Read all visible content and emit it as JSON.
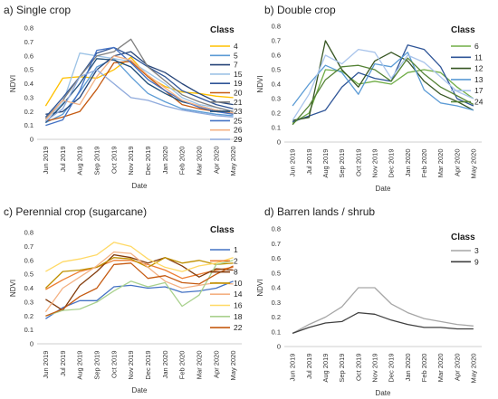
{
  "chart_data": [
    {
      "type": "line",
      "title": "a) Single crop",
      "xlabel": "Date",
      "ylabel": "NDVI",
      "ylim": [
        0,
        0.8
      ],
      "yticks": [
        0,
        0.1,
        0.2,
        0.3,
        0.4,
        0.5,
        0.6,
        0.7,
        0.8
      ],
      "grid": false,
      "legend_title": "Class",
      "legend_position": "right",
      "categories": [
        "Jun 2019",
        "Jul 2019",
        "Aug 2019",
        "Sep 2019",
        "Oct 2019",
        "Nov 2019",
        "Dec 2019",
        "Jan 2020",
        "Feb 2020",
        "Mar 2020",
        "Apr 2020",
        "May 2020"
      ],
      "series": [
        {
          "name": "4",
          "color": "#ffc000",
          "values": [
            0.24,
            0.44,
            0.45,
            0.44,
            0.5,
            0.59,
            0.45,
            0.38,
            0.34,
            0.33,
            0.31,
            0.3
          ]
        },
        {
          "name": "5",
          "color": "#5b9bd5",
          "values": [
            0.12,
            0.18,
            0.34,
            0.52,
            0.58,
            0.45,
            0.33,
            0.27,
            0.22,
            0.2,
            0.18,
            0.17
          ]
        },
        {
          "name": "7",
          "color": "#264478",
          "values": [
            0.18,
            0.2,
            0.3,
            0.5,
            0.6,
            0.63,
            0.53,
            0.48,
            0.4,
            0.33,
            0.27,
            0.25
          ]
        },
        {
          "name": "15",
          "color": "#9dc3e6",
          "values": [
            0.14,
            0.26,
            0.62,
            0.6,
            0.58,
            0.56,
            0.48,
            0.4,
            0.3,
            0.25,
            0.23,
            0.2
          ]
        },
        {
          "name": "19",
          "color": "#2f5597",
          "values": [
            0.16,
            0.3,
            0.45,
            0.62,
            0.66,
            0.6,
            0.52,
            0.45,
            0.35,
            0.3,
            0.25,
            0.22
          ]
        },
        {
          "name": "20",
          "color": "#c55a11",
          "values": [
            0.13,
            0.16,
            0.2,
            0.36,
            0.55,
            0.56,
            0.45,
            0.35,
            0.25,
            0.22,
            0.2,
            0.19
          ]
        },
        {
          "name": "21",
          "color": "#7f7f7f",
          "values": [
            0.15,
            0.28,
            0.45,
            0.6,
            0.63,
            0.72,
            0.52,
            0.42,
            0.32,
            0.27,
            0.23,
            0.2
          ]
        },
        {
          "name": "23",
          "color": "#1f4e79",
          "values": [
            0.12,
            0.25,
            0.4,
            0.58,
            0.57,
            0.52,
            0.4,
            0.33,
            0.27,
            0.24,
            0.21,
            0.19
          ]
        },
        {
          "name": "25",
          "color": "#4472c4",
          "values": [
            0.1,
            0.14,
            0.35,
            0.64,
            0.66,
            0.55,
            0.43,
            0.35,
            0.28,
            0.23,
            0.2,
            0.18
          ]
        },
        {
          "name": "26",
          "color": "#f4b183",
          "values": [
            0.14,
            0.28,
            0.25,
            0.45,
            0.6,
            0.57,
            0.46,
            0.37,
            0.28,
            0.24,
            0.21,
            0.19
          ]
        },
        {
          "name": "29",
          "color": "#8faadc",
          "values": [
            0.13,
            0.22,
            0.45,
            0.5,
            0.4,
            0.3,
            0.28,
            0.24,
            0.21,
            0.19,
            0.17,
            0.16
          ]
        }
      ]
    },
    {
      "type": "line",
      "title": "b) Double crop",
      "xlabel": "Date",
      "ylabel": "NDVI",
      "ylim": [
        0,
        0.8
      ],
      "yticks": [
        0,
        0.1,
        0.2,
        0.3,
        0.4,
        0.5,
        0.6,
        0.7,
        0.8
      ],
      "grid": false,
      "legend_title": "Class",
      "legend_position": "right",
      "categories": [
        "Jun 2019",
        "Jul 2019",
        "Aug 2019",
        "Sep 2019",
        "Oct 2019",
        "Nov 2019",
        "Dec 2019",
        "Jan 2020",
        "Feb 2020",
        "Mar 2020",
        "Apr 2020",
        "May 2020"
      ],
      "series": [
        {
          "name": "6",
          "color": "#70ad47",
          "values": [
            0.13,
            0.2,
            0.5,
            0.49,
            0.4,
            0.42,
            0.4,
            0.48,
            0.5,
            0.48,
            0.38,
            0.3
          ]
        },
        {
          "name": "11",
          "color": "#2f5597",
          "values": [
            0.14,
            0.18,
            0.22,
            0.38,
            0.48,
            0.44,
            0.42,
            0.67,
            0.64,
            0.52,
            0.3,
            0.25
          ]
        },
        {
          "name": "12",
          "color": "#375623",
          "values": [
            0.15,
            0.17,
            0.7,
            0.5,
            0.38,
            0.56,
            0.62,
            0.56,
            0.42,
            0.33,
            0.28,
            0.22
          ]
        },
        {
          "name": "13",
          "color": "#5b9bd5",
          "values": [
            0.25,
            0.4,
            0.53,
            0.48,
            0.33,
            0.54,
            0.52,
            0.62,
            0.36,
            0.27,
            0.25,
            0.22
          ]
        },
        {
          "name": "17",
          "color": "#a9c4eb",
          "values": [
            0.15,
            0.33,
            0.6,
            0.54,
            0.64,
            0.62,
            0.44,
            0.6,
            0.55,
            0.45,
            0.35,
            0.3
          ]
        },
        {
          "name": "24",
          "color": "#548235",
          "values": [
            0.12,
            0.25,
            0.43,
            0.52,
            0.53,
            0.5,
            0.42,
            0.58,
            0.47,
            0.38,
            0.32,
            0.26
          ]
        }
      ]
    },
    {
      "type": "line",
      "title": "c) Perennial crop (sugarcane)",
      "xlabel": "Date",
      "ylabel": "NDVI",
      "ylim": [
        0,
        0.8
      ],
      "yticks": [
        0,
        0.1,
        0.2,
        0.3,
        0.4,
        0.5,
        0.6,
        0.7,
        0.8
      ],
      "grid": false,
      "legend_title": "Class",
      "legend_position": "right",
      "categories": [
        "Jun 2019",
        "Jul 2019",
        "Aug 2019",
        "Sep 2019",
        "Oct 2019",
        "Nov 2019",
        "Dec 2019",
        "Jan 2020",
        "Feb 2020",
        "Mar 2020",
        "Apr 2020",
        "May 2020"
      ],
      "series": [
        {
          "name": "1",
          "color": "#4472c4",
          "values": [
            0.18,
            0.26,
            0.31,
            0.31,
            0.41,
            0.42,
            0.4,
            0.41,
            0.37,
            0.38,
            0.4,
            0.45
          ]
        },
        {
          "name": "2",
          "color": "#ed7d31",
          "values": [
            0.39,
            0.46,
            0.52,
            0.55,
            0.6,
            0.6,
            0.57,
            0.53,
            0.47,
            0.5,
            0.53,
            0.55
          ]
        },
        {
          "name": "8",
          "color": "#843c0c",
          "values": [
            0.32,
            0.24,
            0.42,
            0.52,
            0.64,
            0.62,
            0.58,
            0.62,
            0.56,
            0.48,
            0.54,
            0.53
          ]
        },
        {
          "name": "10",
          "color": "#bf9000",
          "values": [
            0.4,
            0.52,
            0.53,
            0.55,
            0.62,
            0.61,
            0.55,
            0.62,
            0.58,
            0.6,
            0.57,
            0.58
          ]
        },
        {
          "name": "14",
          "color": "#f4b183",
          "values": [
            0.23,
            0.4,
            0.48,
            0.56,
            0.66,
            0.65,
            0.55,
            0.45,
            0.4,
            0.42,
            0.44,
            0.43
          ]
        },
        {
          "name": "16",
          "color": "#ffd966",
          "values": [
            0.52,
            0.59,
            0.61,
            0.64,
            0.73,
            0.7,
            0.61,
            0.55,
            0.52,
            0.56,
            0.58,
            0.62
          ]
        },
        {
          "name": "18",
          "color": "#a9d18e",
          "values": [
            0.2,
            0.24,
            0.25,
            0.3,
            0.38,
            0.45,
            0.41,
            0.44,
            0.27,
            0.35,
            0.57,
            0.6
          ]
        },
        {
          "name": "22",
          "color": "#c55a11",
          "values": [
            0.2,
            0.25,
            0.34,
            0.4,
            0.57,
            0.58,
            0.47,
            0.49,
            0.44,
            0.43,
            0.5,
            0.56
          ]
        }
      ]
    },
    {
      "type": "line",
      "title": "d) Barren lands / shrub",
      "xlabel": "Date",
      "ylabel": "NDVI",
      "ylim": [
        0,
        0.8
      ],
      "yticks": [
        0,
        0.1,
        0.2,
        0.3,
        0.4,
        0.5,
        0.6,
        0.7,
        0.8
      ],
      "grid": false,
      "legend_title": "Class",
      "legend_position": "right",
      "categories": [
        "Jun 2019",
        "Jul 2019",
        "Aug 2019",
        "Sep 2019",
        "Oct 2019",
        "Nov 2019",
        "Dec 2019",
        "Jan 2020",
        "Feb 2020",
        "Mar 2020",
        "Apr 2020",
        "May 2020"
      ],
      "series": [
        {
          "name": "3",
          "color": "#a6a6a6",
          "values": [
            0.09,
            0.15,
            0.2,
            0.27,
            0.4,
            0.4,
            0.29,
            0.23,
            0.19,
            0.17,
            0.15,
            0.14
          ]
        },
        {
          "name": "9",
          "color": "#404040",
          "values": [
            0.09,
            0.13,
            0.16,
            0.17,
            0.23,
            0.22,
            0.18,
            0.15,
            0.13,
            0.13,
            0.12,
            0.12
          ]
        }
      ]
    }
  ]
}
